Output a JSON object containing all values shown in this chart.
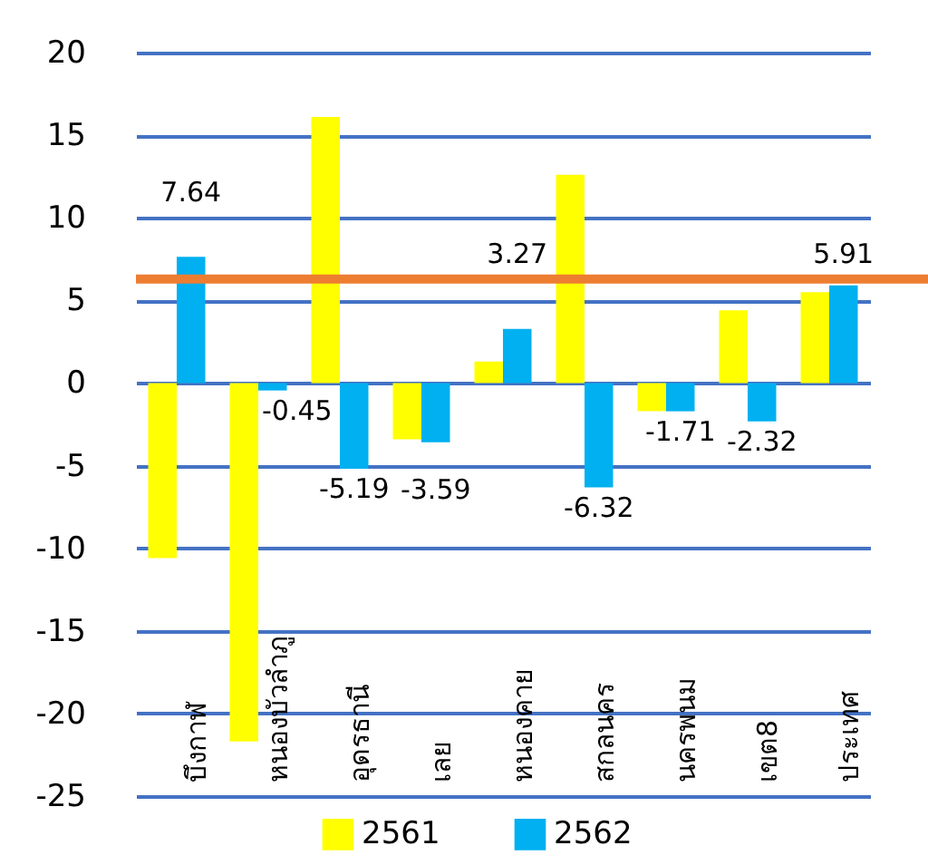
{
  "chart_data": {
    "type": "bar",
    "categories": [
      "บึงกาฬ",
      "หนองบัวลำภู",
      "อุดรธานี",
      "เลย",
      "หนองคาย",
      "สกลนคร",
      "นครพนม",
      "เขต8",
      "ประเทศ"
    ],
    "series": [
      {
        "name": "2561",
        "color": "#ffff00",
        "values": [
          -10.6,
          -21.7,
          16.1,
          -3.4,
          1.3,
          12.6,
          -1.7,
          4.4,
          5.5
        ]
      },
      {
        "name": "2562",
        "color": "#00b0f0",
        "values": [
          7.64,
          -0.45,
          -5.19,
          -3.59,
          3.27,
          -6.32,
          -1.71,
          -2.32,
          5.91
        ],
        "value_labels": [
          "7.64",
          "-0.45",
          "-5.19",
          "-3.59",
          "3.27",
          "-6.32",
          "-1.71",
          "-2.32",
          "5.91"
        ]
      }
    ],
    "ylim": [
      -25,
      20
    ],
    "yticks": [
      -25,
      -20,
      -15,
      -10,
      -5,
      0,
      5,
      10,
      15,
      20
    ],
    "grid": "y",
    "legend": "bottom",
    "ref_lines": [
      {
        "axis": "y",
        "value": 6.3,
        "color": "#ed7d31"
      }
    ]
  }
}
